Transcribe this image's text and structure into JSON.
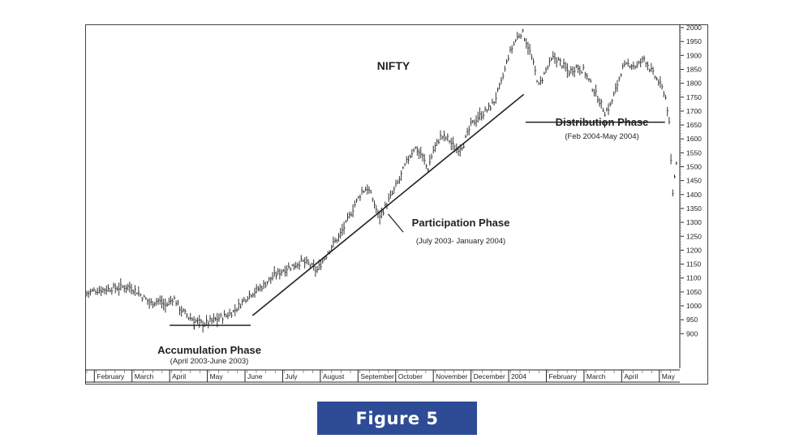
{
  "figure_label": "Figure 5",
  "colors": {
    "caption_bg": "#2e4b96",
    "line": "#222222"
  },
  "chart_data": {
    "type": "line",
    "style": "ohlc-bars",
    "title": "NIFTY",
    "xlabel": "",
    "ylabel": "",
    "ylim": [
      850,
      2000
    ],
    "grid": false,
    "y_ticks": [
      2000,
      1950,
      1900,
      1850,
      1800,
      1750,
      1700,
      1650,
      1600,
      1550,
      1500,
      1450,
      1400,
      1350,
      1300,
      1250,
      1200,
      1150,
      1100,
      1050,
      1000,
      950,
      900
    ],
    "x_labels": [
      {
        "label": "February",
        "month": 1.0
      },
      {
        "label": "March",
        "month": 2.0
      },
      {
        "label": "April",
        "month": 3.0
      },
      {
        "label": "May",
        "month": 4.0
      },
      {
        "label": "June",
        "month": 5.0
      },
      {
        "label": "July",
        "month": 6.0
      },
      {
        "label": "August",
        "month": 7.0
      },
      {
        "label": "September",
        "month": 8.0
      },
      {
        "label": "October",
        "month": 9.0
      },
      {
        "label": "November",
        "month": 10.0
      },
      {
        "label": "December",
        "month": 11.0
      },
      {
        "label": "2004",
        "month": 12.0
      },
      {
        "label": "February",
        "month": 13.0
      },
      {
        "label": "March",
        "month": 14.0
      },
      {
        "label": "April",
        "month": 15.0
      },
      {
        "label": "May",
        "month": 16.0
      }
    ],
    "xlim": [
      0.8,
      16.5
    ],
    "series": [
      {
        "points": [
          [
            0.8,
            1045
          ],
          [
            1.0,
            1055
          ],
          [
            1.3,
            1060
          ],
          [
            1.6,
            1065
          ],
          [
            1.9,
            1070
          ],
          [
            2.1,
            1055
          ],
          [
            2.3,
            1030
          ],
          [
            2.5,
            1010
          ],
          [
            2.7,
            1020
          ],
          [
            2.9,
            1000
          ],
          [
            3.1,
            1030
          ],
          [
            3.3,
            985
          ],
          [
            3.5,
            960
          ],
          [
            3.7,
            945
          ],
          [
            3.9,
            935
          ],
          [
            4.1,
            945
          ],
          [
            4.3,
            955
          ],
          [
            4.5,
            965
          ],
          [
            4.7,
            980
          ],
          [
            4.9,
            1010
          ],
          [
            5.1,
            1040
          ],
          [
            5.3,
            1055
          ],
          [
            5.5,
            1075
          ],
          [
            5.7,
            1100
          ],
          [
            5.9,
            1120
          ],
          [
            6.1,
            1135
          ],
          [
            6.3,
            1145
          ],
          [
            6.5,
            1160
          ],
          [
            6.7,
            1150
          ],
          [
            6.9,
            1125
          ],
          [
            7.1,
            1170
          ],
          [
            7.3,
            1215
          ],
          [
            7.5,
            1250
          ],
          [
            7.7,
            1300
          ],
          [
            7.9,
            1360
          ],
          [
            8.1,
            1410
          ],
          [
            8.25,
            1425
          ],
          [
            8.4,
            1380
          ],
          [
            8.55,
            1320
          ],
          [
            8.7,
            1350
          ],
          [
            8.9,
            1400
          ],
          [
            9.1,
            1455
          ],
          [
            9.3,
            1520
          ],
          [
            9.5,
            1570
          ],
          [
            9.7,
            1540
          ],
          [
            9.85,
            1490
          ],
          [
            10.0,
            1560
          ],
          [
            10.2,
            1610
          ],
          [
            10.4,
            1600
          ],
          [
            10.6,
            1560
          ],
          [
            10.8,
            1580
          ],
          [
            11.0,
            1650
          ],
          [
            11.2,
            1680
          ],
          [
            11.4,
            1700
          ],
          [
            11.6,
            1730
          ],
          [
            11.8,
            1800
          ],
          [
            12.0,
            1900
          ],
          [
            12.2,
            1960
          ],
          [
            12.35,
            1985
          ],
          [
            12.5,
            1940
          ],
          [
            12.65,
            1870
          ],
          [
            12.8,
            1790
          ],
          [
            13.0,
            1850
          ],
          [
            13.2,
            1895
          ],
          [
            13.4,
            1870
          ],
          [
            13.6,
            1840
          ],
          [
            13.8,
            1860
          ],
          [
            14.0,
            1845
          ],
          [
            14.2,
            1790
          ],
          [
            14.4,
            1740
          ],
          [
            14.55,
            1695
          ],
          [
            14.7,
            1720
          ],
          [
            14.85,
            1780
          ],
          [
            15.0,
            1850
          ],
          [
            15.2,
            1870
          ],
          [
            15.4,
            1860
          ],
          [
            15.6,
            1890
          ],
          [
            15.8,
            1840
          ],
          [
            16.0,
            1800
          ],
          [
            16.15,
            1760
          ],
          [
            16.25,
            1680
          ],
          [
            16.35,
            1400
          ],
          [
            16.45,
            1520
          ]
        ]
      }
    ],
    "annotations": [
      {
        "title": "Accumulation Phase",
        "subtitle": "(April 2003-June 2003)"
      },
      {
        "title": "Participation Phase",
        "subtitle": "(July 2003- January 2004)"
      },
      {
        "title": "Distribution Phase",
        "subtitle": "(Feb 2004-May 2004)"
      }
    ]
  }
}
